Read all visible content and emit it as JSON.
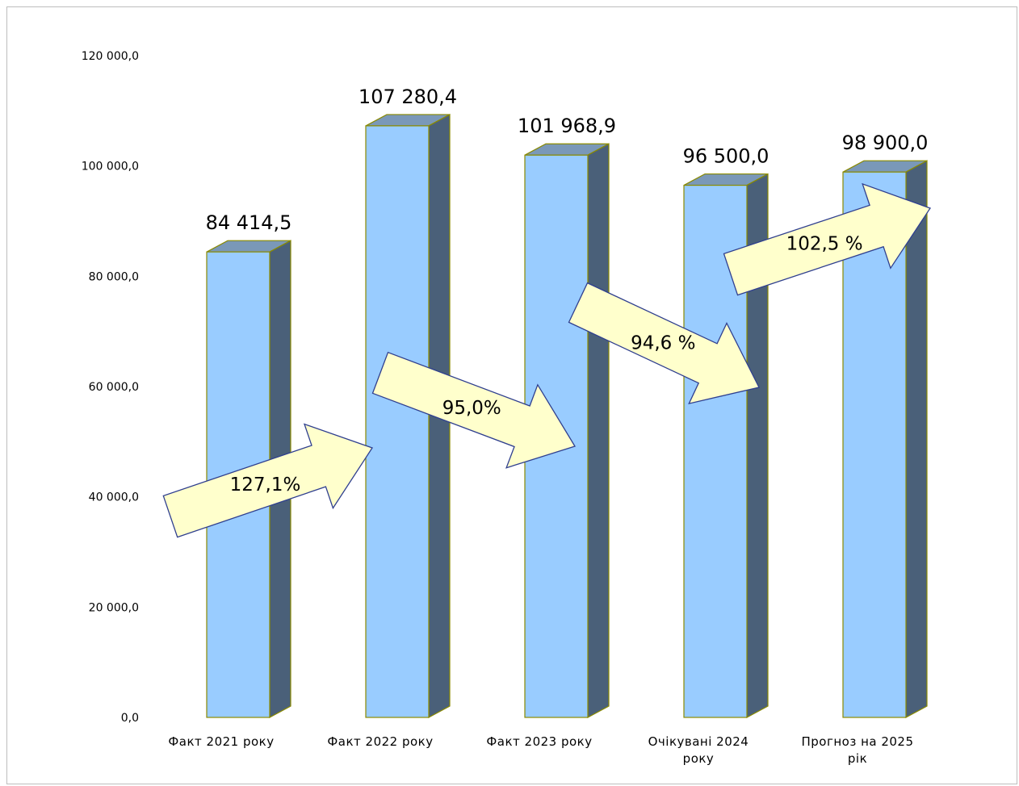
{
  "chart_data": {
    "type": "bar",
    "style": "3d-column",
    "categories": [
      [
        "Факт 2021 року"
      ],
      [
        "Факт 2022 року"
      ],
      [
        "Факт 2023 року"
      ],
      [
        "Очікувані 2024",
        "року"
      ],
      [
        "Прогноз на 2025",
        "рік"
      ]
    ],
    "values": [
      84414.5,
      107280.4,
      101968.9,
      96500.0,
      98900.0
    ],
    "data_labels": [
      "84 414,5",
      "107 280,4",
      "101 968,9",
      "96 500,0",
      "98 900,0"
    ],
    "y_ticks": [
      "0,0",
      "20 000,0",
      "40 000,0",
      "60 000,0",
      "80 000,0",
      "100 000,0",
      "120 000,0"
    ],
    "ylim": [
      0,
      120000
    ],
    "grid": false,
    "title": "",
    "xlabel": "",
    "ylabel": "",
    "growth_arrows": [
      {
        "label": "127,1%",
        "from": 0,
        "to": 1
      },
      {
        "label": "95,0%",
        "from": 1,
        "to": 2
      },
      {
        "label": "94,6 %",
        "from": 2,
        "to": 3
      },
      {
        "label": "102,5 %",
        "from": 3,
        "to": 4
      }
    ],
    "colors": {
      "bar_front": "#99ccff",
      "bar_side": "#4a6079",
      "bar_top": "#7a98b8",
      "bar_outline": "#8a8a00",
      "arrow_fill": "#ffffcc",
      "arrow_outline": "#2f3f8f"
    }
  }
}
